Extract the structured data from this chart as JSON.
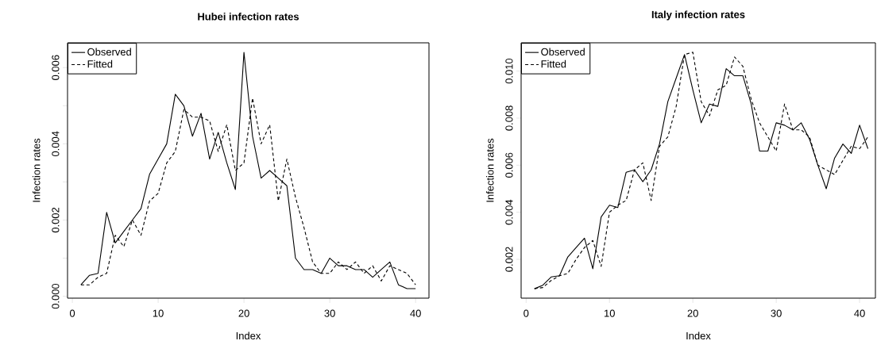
{
  "chart_data": [
    {
      "type": "line",
      "title": "Hubei infection rates",
      "xlabel": "Index",
      "ylabel": "Infection rates",
      "legend": "top left",
      "x": [
        1,
        2,
        3,
        4,
        5,
        6,
        7,
        8,
        9,
        10,
        11,
        12,
        13,
        14,
        15,
        16,
        17,
        18,
        19,
        20,
        21,
        22,
        23,
        24,
        25,
        26,
        27,
        28,
        29,
        30,
        31,
        32,
        33,
        34,
        35,
        36,
        37,
        38,
        39,
        40
      ],
      "xlim": [
        -0.56,
        41.56
      ],
      "ylim": [
        -5e-05,
        0.00665
      ],
      "xticks": [
        0,
        10,
        20,
        30,
        40
      ],
      "yticks": [
        {
          "value": 0,
          "label": "0.000"
        },
        {
          "value": 0.001,
          "label": null
        },
        {
          "value": 0.002,
          "label": "0.002"
        },
        {
          "value": 0.003,
          "label": null
        },
        {
          "value": 0.004,
          "label": "0.004"
        },
        {
          "value": 0.005,
          "label": null
        },
        {
          "value": 0.006,
          "label": "0.006"
        }
      ],
      "series": [
        {
          "name": "Observed",
          "color": "#000000",
          "line_style": "solid",
          "values": [
            0.0003,
            0.00055,
            0.0006,
            0.0022,
            0.0014,
            0.0017,
            0.002,
            0.0023,
            0.0032,
            0.0036,
            0.004,
            0.0053,
            0.005,
            0.0042,
            0.0048,
            0.0036,
            0.0043,
            0.0035,
            0.0028,
            0.0064,
            0.0042,
            0.0031,
            0.0033,
            0.0031,
            0.0029,
            0.001,
            0.0007,
            0.0007,
            0.0006,
            0.001,
            0.0008,
            0.0008,
            0.0007,
            0.0007,
            0.0005,
            0.0007,
            0.0009,
            0.0003,
            0.0002,
            0.0002
          ]
        },
        {
          "name": "Fitted",
          "color": "#000000",
          "line_style": "dashed",
          "values": [
            0.0003,
            0.0003,
            0.0005,
            0.0006,
            0.0016,
            0.0013,
            0.002,
            0.0016,
            0.0025,
            0.0027,
            0.0035,
            0.0038,
            0.0049,
            0.0047,
            0.0047,
            0.0046,
            0.0038,
            0.0045,
            0.0033,
            0.0035,
            0.0052,
            0.004,
            0.0045,
            0.0025,
            0.0036,
            0.0026,
            0.0018,
            0.0009,
            0.0006,
            0.0006,
            0.0009,
            0.0007,
            0.0009,
            0.0006,
            0.0008,
            0.0004,
            0.0008,
            0.0007,
            0.0006,
            0.0003
          ]
        }
      ]
    },
    {
      "type": "line",
      "title": "Italy infection rates",
      "xlabel": "Index",
      "ylabel": "Infection rates",
      "legend": "top left",
      "x": [
        1,
        2,
        3,
        4,
        5,
        6,
        7,
        8,
        9,
        10,
        11,
        12,
        13,
        14,
        15,
        16,
        17,
        18,
        19,
        20,
        21,
        22,
        23,
        24,
        25,
        26,
        27,
        28,
        29,
        30,
        31,
        32,
        33,
        34,
        35,
        36,
        37,
        38,
        39,
        40,
        41
      ],
      "xlim": [
        -0.6,
        41.9
      ],
      "ylim": [
        0.00035,
        0.0112
      ],
      "xticks": [
        0,
        10,
        20,
        30,
        40
      ],
      "yticks": [
        {
          "value": 0.002,
          "label": "0.002"
        },
        {
          "value": 0.004,
          "label": "0.004"
        },
        {
          "value": 0.006,
          "label": "0.006"
        },
        {
          "value": 0.008,
          "label": "0.008"
        },
        {
          "value": 0.01,
          "label": "0.010"
        }
      ],
      "series": [
        {
          "name": "Observed",
          "color": "#000000",
          "line_style": "solid",
          "values": [
            0.00075,
            0.0009,
            0.00125,
            0.0013,
            0.0021,
            0.0025,
            0.0029,
            0.0016,
            0.0038,
            0.0043,
            0.0042,
            0.0057,
            0.0058,
            0.0053,
            0.0058,
            0.0069,
            0.0087,
            0.0097,
            0.0107,
            0.0092,
            0.0078,
            0.0086,
            0.0085,
            0.0101,
            0.0098,
            0.0098,
            0.0086,
            0.0066,
            0.0066,
            0.0078,
            0.0077,
            0.0075,
            0.0078,
            0.0071,
            0.006,
            0.005,
            0.0063,
            0.0069,
            0.0065,
            0.0077,
            0.0067
          ]
        },
        {
          "name": "Fitted",
          "color": "#000000",
          "line_style": "dashed",
          "values": [
            0.00075,
            0.0008,
            0.0011,
            0.0013,
            0.0014,
            0.002,
            0.0025,
            0.0028,
            0.0017,
            0.004,
            0.0043,
            0.0045,
            0.0058,
            0.0061,
            0.0045,
            0.0068,
            0.0072,
            0.0085,
            0.0107,
            0.0108,
            0.0087,
            0.0081,
            0.0092,
            0.0094,
            0.0106,
            0.0102,
            0.0088,
            0.0078,
            0.0072,
            0.0066,
            0.0086,
            0.0075,
            0.0075,
            0.0072,
            0.006,
            0.0058,
            0.0056,
            0.0062,
            0.0068,
            0.0067,
            0.0072
          ]
        }
      ]
    }
  ]
}
